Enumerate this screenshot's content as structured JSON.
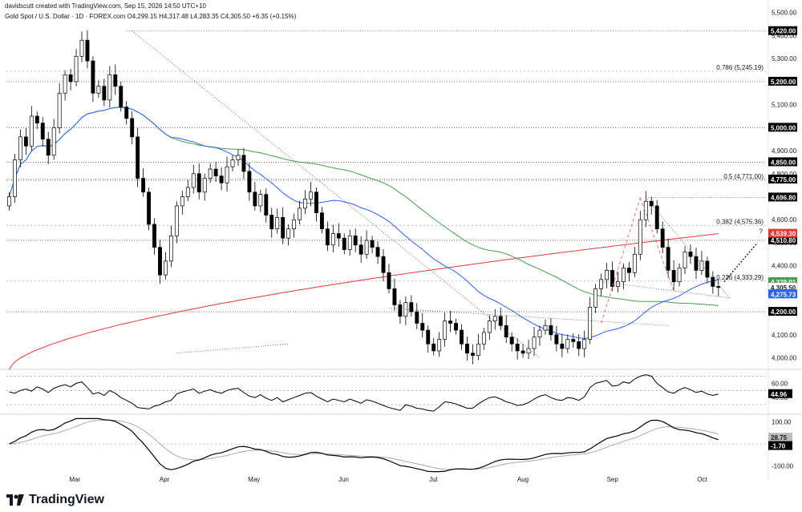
{
  "header": {
    "created_by": "davidscutt created with TradingView.com, Sep 15, 2026 14:50 UTC+10",
    "symbol_line": "Gold Spot / U.S. Dollar · 1D · FOREX.com  O4,299.15  H4,317.48  L4,283.35  C4,305.50  +6.35 (+0.15%)"
  },
  "brand": {
    "name": "TradingView"
  },
  "colors": {
    "up": "#ffffff",
    "down": "#000000",
    "wick": "#000000",
    "ma_blue": "#2962ff",
    "ma_green": "#43a047",
    "ma_red": "#e53935",
    "fib_pink": "#e57373",
    "grid": "#888888"
  },
  "chart_data": [
    {
      "type": "candlestick",
      "title": "Gold Spot / U.S. Dollar",
      "timeframe": "1D",
      "ylim": [
        3960,
        5520
      ],
      "y_ticks": [
        "5,500.00",
        "5,400.00",
        "5,300.00",
        "5,200.00",
        "5,100.00",
        "5,000.00",
        "4,900.00",
        "4,800.00",
        "4,700.00",
        "4,600.00",
        "4,500.00",
        "4,400.00",
        "4,300.00",
        "4,200.00",
        "4,100.00",
        "4,000.00"
      ],
      "x_ticks": [
        "Mar",
        "Apr",
        "May",
        "Jun",
        "Jul",
        "Aug",
        "Sep",
        "Oct"
      ],
      "close": [
        4700,
        4860,
        4960,
        4920,
        5050,
        5020,
        4950,
        4880,
        5000,
        5150,
        5230,
        5200,
        5310,
        5380,
        5290,
        5150,
        5180,
        5120,
        5230,
        5180,
        5090,
        5040,
        4960,
        4780,
        4720,
        4580,
        4480,
        4360,
        4420,
        4530,
        4660,
        4700,
        4740,
        4800,
        4720,
        4780,
        4820,
        4790,
        4760,
        4830,
        4860,
        4880,
        4810,
        4720,
        4660,
        4710,
        4620,
        4560,
        4610,
        4520,
        4560,
        4600,
        4650,
        4690,
        4720,
        4630,
        4560,
        4490,
        4540,
        4520,
        4470,
        4530,
        4490,
        4450,
        4510,
        4480,
        4440,
        4370,
        4300,
        4230,
        4180,
        4240,
        4200,
        4150,
        4120,
        4060,
        4030,
        4080,
        4160,
        4150,
        4120,
        4060,
        4020,
        4010,
        4060,
        4110,
        4160,
        4180,
        4140,
        4090,
        4060,
        4030,
        4020,
        4040,
        4090,
        4120,
        4140,
        4100,
        4060,
        4040,
        4080,
        4070,
        4040,
        4080,
        4220,
        4300,
        4340,
        4380,
        4310,
        4330,
        4390,
        4370,
        4450,
        4600,
        4680,
        4660,
        4560,
        4480,
        4380,
        4330,
        4390,
        4460,
        4440,
        4380,
        4420,
        4350,
        4310,
        4305.5
      ],
      "ma_fast_last": 4275.73,
      "ma_mid_last": 4329.01,
      "ma_slow_last": 4539.3,
      "horizontal_levels": [
        {
          "label": "5,420.00",
          "value": 5420
        },
        {
          "label": "5,200.00",
          "value": 5200
        },
        {
          "label": "5,000.00",
          "value": 5000
        },
        {
          "label": "4,850.00",
          "value": 4850
        },
        {
          "label": "4,775.00",
          "value": 4775
        },
        {
          "label": "4,696.80",
          "value": 4696.8
        },
        {
          "label": "4,510.80",
          "value": 4510.8
        },
        {
          "label": "4,200.00",
          "value": 4200
        }
      ],
      "fib_levels": [
        {
          "label": "0.786 (5,245.19)",
          "value": 5245.19
        },
        {
          "label": "0.5 (4,771.00)",
          "value": 4771.0
        },
        {
          "label": "0.382 (4,575.36)",
          "value": 4575.36
        },
        {
          "label": "0.236 (4,333.29)",
          "value": 4333.29
        }
      ],
      "price_tags": [
        {
          "label": "4,539.30",
          "color": "#e53935"
        },
        {
          "label": "4,329.01",
          "color": "#43a047"
        },
        {
          "label": "4,305.50",
          "color": "#ffffff"
        },
        {
          "label": "4,275.73",
          "color": "#2962ff"
        }
      ],
      "annotation": "?"
    },
    {
      "type": "line",
      "name": "RSI",
      "ylim": [
        20,
        75
      ],
      "y_ticks": [
        "60.00",
        "40.00"
      ],
      "last_value": "44.96",
      "values": [
        48,
        46,
        50,
        52,
        49,
        55,
        52,
        47,
        53,
        56,
        58,
        55,
        60,
        62,
        54,
        45,
        47,
        43,
        50,
        46,
        40,
        36,
        32,
        26,
        25,
        24,
        28,
        30,
        34,
        36,
        45,
        48,
        50,
        52,
        46,
        49,
        51,
        48,
        46,
        50,
        52,
        53,
        47,
        42,
        40,
        44,
        39,
        36,
        40,
        34,
        37,
        40,
        43,
        46,
        47,
        42,
        38,
        34,
        38,
        36,
        34,
        38,
        35,
        32,
        37,
        35,
        32,
        29,
        26,
        24,
        22,
        30,
        28,
        25,
        24,
        22,
        21,
        27,
        34,
        33,
        31,
        28,
        25,
        25,
        31,
        36,
        40,
        41,
        38,
        34,
        32,
        29,
        30,
        33,
        38,
        42,
        44,
        40,
        37,
        36,
        40,
        39,
        36,
        41,
        54,
        60,
        62,
        64,
        56,
        57,
        62,
        60,
        66,
        70,
        72,
        70,
        60,
        54,
        48,
        46,
        51,
        54,
        51,
        47,
        49,
        45,
        43,
        44.96
      ]
    },
    {
      "type": "line",
      "name": "MACD",
      "ylim": [
        -130,
        120
      ],
      "y_ticks": [
        "100.00",
        "-100.00"
      ],
      "signal_last": "28.75",
      "macd_last": "-1.70"
    }
  ]
}
